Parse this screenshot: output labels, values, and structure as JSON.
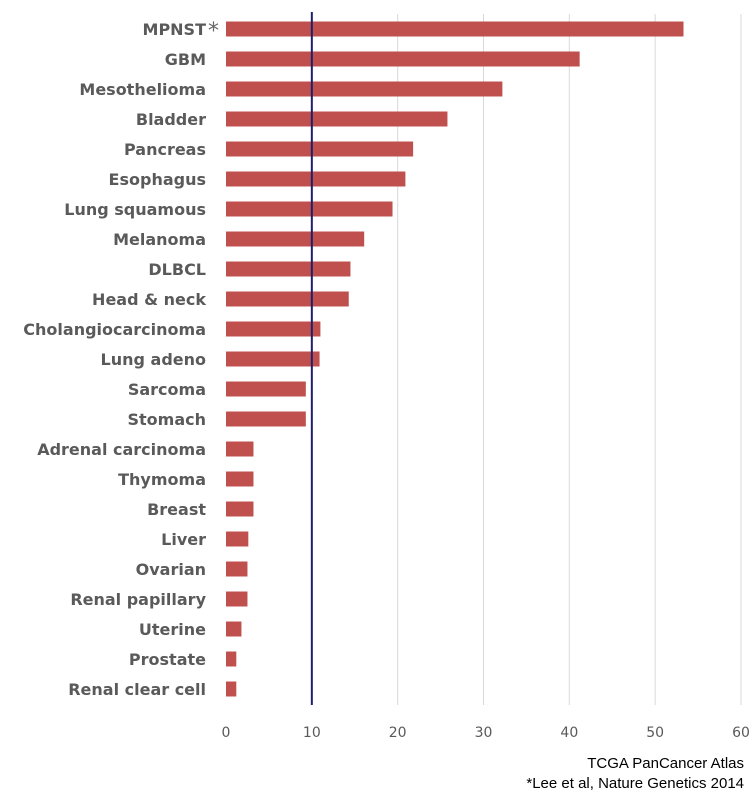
{
  "chart_data": {
    "type": "bar",
    "orientation": "horizontal",
    "categories": [
      "MPNST",
      "GBM",
      "Mesothelioma",
      "Bladder",
      "Pancreas",
      "Esophagus",
      "Lung squamous",
      "Melanoma",
      "DLBCL",
      "Head & neck",
      "Cholangiocarcinoma",
      "Lung adeno",
      "Sarcoma",
      "Stomach",
      "Adrenal carcinoma",
      "Thymoma",
      "Breast",
      "Liver",
      "Ovarian",
      "Renal papillary",
      "Uterine",
      "Prostate",
      "Renal clear cell"
    ],
    "values": [
      53.3,
      41.2,
      32.2,
      25.8,
      21.8,
      20.9,
      19.4,
      16.1,
      14.5,
      14.3,
      11.0,
      10.9,
      9.3,
      9.3,
      3.2,
      3.2,
      3.2,
      2.6,
      2.5,
      2.5,
      1.8,
      1.2,
      1.2
    ],
    "category_marks": {
      "MPNST": "*"
    },
    "xlim": [
      0,
      60
    ],
    "xticks": [
      0,
      10,
      20,
      30,
      40,
      50,
      60
    ],
    "reference_line": 10,
    "grid": true,
    "bar_color": "#c0504d",
    "reference_line_color": "#1f1f6b",
    "grid_color": "#d9d9d9"
  },
  "source": {
    "line1": "TCGA PanCancer Atlas",
    "line2": "*Lee et al, Nature Genetics 2014"
  }
}
